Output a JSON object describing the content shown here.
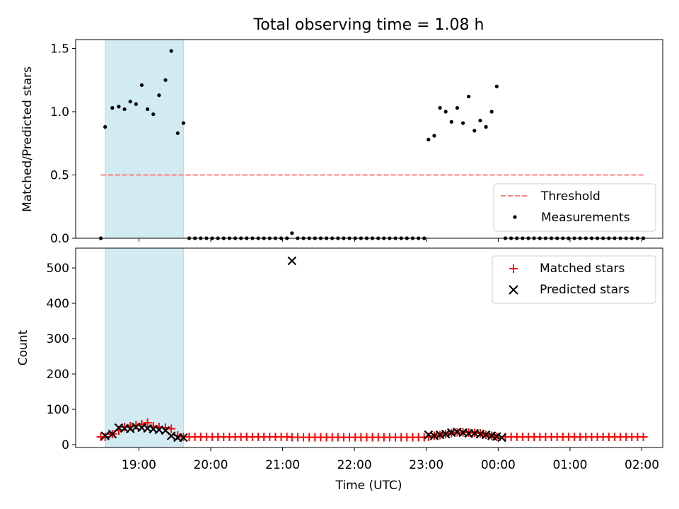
{
  "chart_data": {
    "title": "Total observing time = 1.08 h",
    "x_unit": "hours UTC from 00:00 of first night (values above 24 are past midnight)",
    "xlim": [
      18.12,
      26.29
    ],
    "xticks": [
      19,
      20,
      21,
      22,
      23,
      24,
      25,
      26
    ],
    "xtick_labels": [
      "19:00",
      "20:00",
      "21:00",
      "22:00",
      "23:00",
      "00:00",
      "01:00",
      "02:00"
    ],
    "xlabel": "Time (UTC)",
    "shaded_interval": [
      18.53,
      19.62
    ],
    "shaded_color": "#add8e6",
    "top": {
      "type": "scatter",
      "ylabel": "Matched/Predicted stars",
      "ylim": [
        0,
        1.57
      ],
      "yticks": [
        0.0,
        0.5,
        1.0,
        1.5
      ],
      "ytick_labels": [
        "0.0",
        "0.5",
        "1.0",
        "1.5"
      ],
      "threshold": {
        "name": "Threshold",
        "value": 0.5,
        "x_range": [
          18.47,
          26.05
        ],
        "color": "#ff7f7f"
      },
      "measurements": {
        "name": "Measurements",
        "color": "#000000",
        "x": [
          18.47,
          18.53,
          18.63,
          18.72,
          18.8,
          18.88,
          18.96,
          19.04,
          19.12,
          19.2,
          19.28,
          19.37,
          19.45,
          19.54,
          19.62,
          19.7,
          19.78,
          19.86,
          19.94,
          20.02,
          20.1,
          20.18,
          20.26,
          20.34,
          20.42,
          20.5,
          20.58,
          20.66,
          20.74,
          20.82,
          20.9,
          20.98,
          21.06,
          21.13,
          21.21,
          21.29,
          21.37,
          21.45,
          21.53,
          21.61,
          21.69,
          21.77,
          21.85,
          21.93,
          22.01,
          22.09,
          22.17,
          22.25,
          22.33,
          22.41,
          22.49,
          22.57,
          22.65,
          22.73,
          22.81,
          22.89,
          22.97,
          23.03,
          23.11,
          23.19,
          23.27,
          23.35,
          23.43,
          23.51,
          23.59,
          23.67,
          23.75,
          23.83,
          23.91,
          23.98,
          24.1,
          24.18,
          24.26,
          24.34,
          24.42,
          24.5,
          24.58,
          24.66,
          24.74,
          24.82,
          24.9,
          24.98,
          25.06,
          25.14,
          25.22,
          25.3,
          25.38,
          25.46,
          25.54,
          25.62,
          25.7,
          25.78,
          25.86,
          25.94,
          26.02
        ],
        "y": [
          0.0,
          0.88,
          1.03,
          1.04,
          1.02,
          1.08,
          1.06,
          1.21,
          1.02,
          0.98,
          1.13,
          1.25,
          1.48,
          0.83,
          0.91,
          0,
          0,
          0,
          0,
          0,
          0,
          0,
          0,
          0,
          0,
          0,
          0,
          0,
          0,
          0,
          0,
          0,
          0,
          0.04,
          0,
          0,
          0,
          0,
          0,
          0,
          0,
          0,
          0,
          0,
          0,
          0,
          0,
          0,
          0,
          0,
          0,
          0,
          0,
          0,
          0,
          0,
          0,
          0.78,
          0.81,
          1.03,
          1.0,
          0.92,
          1.03,
          0.91,
          1.12,
          0.85,
          0.93,
          0.88,
          1.0,
          1.2,
          0,
          0,
          0,
          0,
          0,
          0,
          0,
          0,
          0,
          0,
          0,
          0,
          0,
          0,
          0,
          0,
          0,
          0,
          0,
          0,
          0,
          0,
          0,
          0,
          0
        ]
      }
    },
    "bottom": {
      "type": "scatter",
      "ylabel": "Count",
      "ylim": [
        -8,
        556
      ],
      "yticks": [
        0,
        100,
        200,
        300,
        400,
        500
      ],
      "ytick_labels": [
        "0",
        "100",
        "200",
        "300",
        "400",
        "500"
      ],
      "matched": {
        "name": "Matched stars",
        "color": "#ff0000",
        "x": [
          18.47,
          18.53,
          18.63,
          18.72,
          18.8,
          18.88,
          18.96,
          19.04,
          19.12,
          19.2,
          19.28,
          19.37,
          19.45,
          19.54,
          19.62,
          19.7,
          19.78,
          19.86,
          19.94,
          20.02,
          20.1,
          20.18,
          20.26,
          20.34,
          20.42,
          20.5,
          20.58,
          20.66,
          20.74,
          20.82,
          20.9,
          20.98,
          21.06,
          21.13,
          21.21,
          21.29,
          21.37,
          21.45,
          21.53,
          21.61,
          21.69,
          21.77,
          21.85,
          21.93,
          22.01,
          22.09,
          22.17,
          22.25,
          22.33,
          22.41,
          22.49,
          22.57,
          22.65,
          22.73,
          22.81,
          22.89,
          22.97,
          23.03,
          23.11,
          23.19,
          23.27,
          23.35,
          23.43,
          23.51,
          23.59,
          23.67,
          23.75,
          23.83,
          23.91,
          23.98,
          24.1,
          24.18,
          24.26,
          24.34,
          24.42,
          24.5,
          24.58,
          24.66,
          24.74,
          24.82,
          24.9,
          24.98,
          25.06,
          25.14,
          25.22,
          25.3,
          25.38,
          25.46,
          25.54,
          25.62,
          25.7,
          25.78,
          25.86,
          25.94,
          26.02
        ],
        "y": [
          22,
          22,
          30,
          40,
          50,
          52,
          55,
          58,
          62,
          52,
          50,
          48,
          45,
          26,
          22,
          22,
          22,
          22,
          22,
          22,
          22,
          22,
          22,
          22,
          22,
          22,
          22,
          22,
          22,
          22,
          22,
          22,
          22,
          21,
          21,
          21,
          21,
          21,
          21,
          21,
          21,
          21,
          21,
          21,
          21,
          21,
          21,
          21,
          21,
          21,
          21,
          21,
          21,
          21,
          21,
          21,
          21,
          22,
          25,
          27,
          30,
          33,
          35,
          35,
          34,
          33,
          32,
          28,
          25,
          22,
          22,
          22,
          22,
          22,
          22,
          22,
          22,
          22,
          22,
          22,
          22,
          22,
          22,
          22,
          22,
          22,
          22,
          22,
          22,
          22,
          22,
          22,
          22,
          22,
          22
        ]
      },
      "predicted": {
        "name": "Predicted stars",
        "color": "#000000",
        "x": [
          18.53,
          18.63,
          18.72,
          18.8,
          18.88,
          18.96,
          19.04,
          19.12,
          19.2,
          19.28,
          19.37,
          19.45,
          19.54,
          19.62,
          21.13,
          23.03,
          23.11,
          23.19,
          23.27,
          23.35,
          23.43,
          23.51,
          23.59,
          23.67,
          23.75,
          23.83,
          23.91,
          23.98,
          24.05
        ],
        "y": [
          25,
          30,
          48,
          46,
          45,
          50,
          48,
          46,
          44,
          42,
          40,
          25,
          20,
          20,
          520,
          28,
          25,
          28,
          30,
          34,
          36,
          34,
          32,
          32,
          30,
          28,
          25,
          23,
          20
        ]
      }
    },
    "legend_placement": "lower-right (top panel), upper-right (bottom panel)"
  }
}
